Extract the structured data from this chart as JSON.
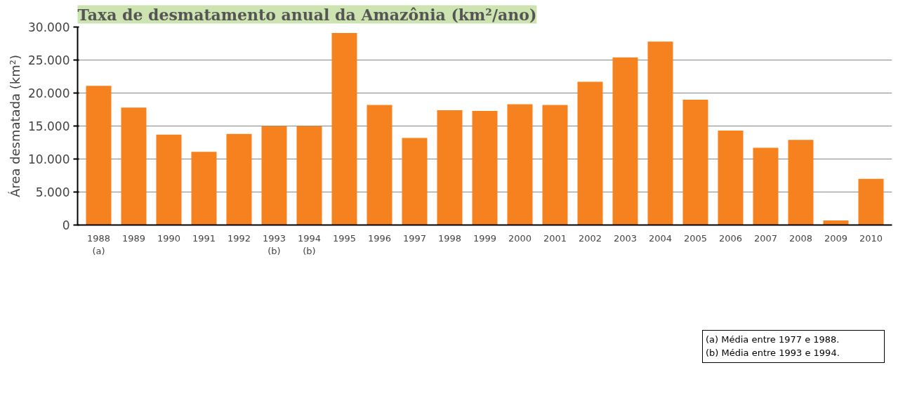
{
  "chart_data": {
    "type": "bar",
    "title": "Taxa de desmatamento anual da Amazônia (km²/ano)",
    "ylabel": "Área desmatada (km²)",
    "categories": [
      "1988\n(a)",
      "1989",
      "1990",
      "1991",
      "1992",
      "1993\n(b)",
      "1994\n(b)",
      "1995",
      "1996",
      "1997",
      "1998",
      "1999",
      "2000",
      "2001",
      "2002",
      "2003",
      "2004",
      "2005",
      "2006",
      "2007",
      "2008",
      "2009",
      "2010"
    ],
    "values": [
      21100,
      17800,
      13700,
      11100,
      13800,
      15000,
      15000,
      29100,
      18200,
      13200,
      17400,
      17300,
      18300,
      18200,
      21700,
      25400,
      27800,
      19000,
      14300,
      11700,
      12900,
      700,
      7000
    ],
    "color": "#f5821f",
    "ylim": [
      0,
      30000
    ],
    "yticks": [
      {
        "value": 0,
        "label": "0"
      },
      {
        "value": 5000,
        "label": "5.000"
      },
      {
        "value": 10000,
        "label": "10.000"
      },
      {
        "value": 15000,
        "label": "15.000"
      },
      {
        "value": 20000,
        "label": "20.000"
      },
      {
        "value": 25000,
        "label": "25.000"
      },
      {
        "value": 30000,
        "label": "30.000"
      }
    ],
    "grid": "y",
    "annotations": [
      "(a) Média entre 1977 e 1988.\n(b) Média entre 1993 e 1994."
    ]
  }
}
